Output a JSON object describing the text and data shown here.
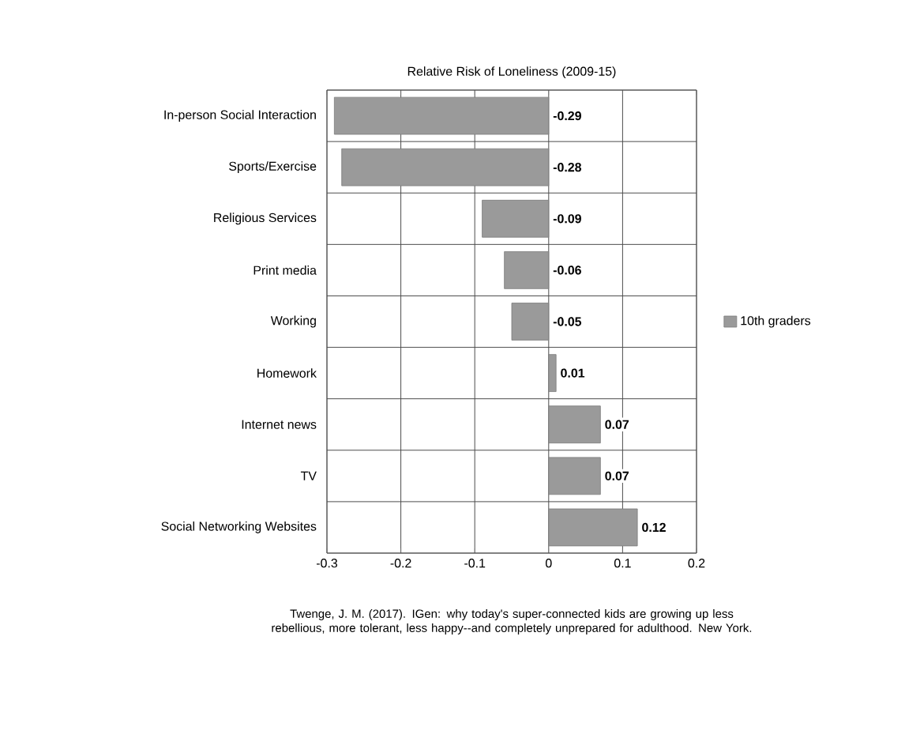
{
  "chart_data": {
    "type": "bar",
    "orientation": "horizontal",
    "title": "Relative Risk of Loneliness (2009-15)",
    "categories": [
      "In-person Social Interaction",
      "Sports/Exercise",
      "Religious Services",
      "Print media",
      "Working",
      "Homework",
      "Internet news",
      "TV",
      "Social Networking Websites"
    ],
    "series": [
      {
        "name": "10th graders",
        "color": "#9a9a9a",
        "values": [
          -0.29,
          -0.28,
          -0.09,
          -0.06,
          -0.05,
          0.01,
          0.07,
          0.07,
          0.12
        ],
        "value_labels": [
          "-0.29",
          "-0.28",
          "-0.09",
          "-0.06",
          "-0.05",
          "0.01",
          "0.07",
          "0.07",
          "0.12"
        ]
      }
    ],
    "xlim": [
      -0.3,
      0.2
    ],
    "xticks": [
      -0.3,
      -0.2,
      -0.1,
      0,
      0.1,
      0.2
    ],
    "grid": true,
    "legend": "right",
    "annotations": [
      "Twenge, J. M. (2017). IGen: why today's super-connected kids are growing up less rebellious, more tolerant, less happy--and completely unprepared for adulthood. New York."
    ]
  }
}
